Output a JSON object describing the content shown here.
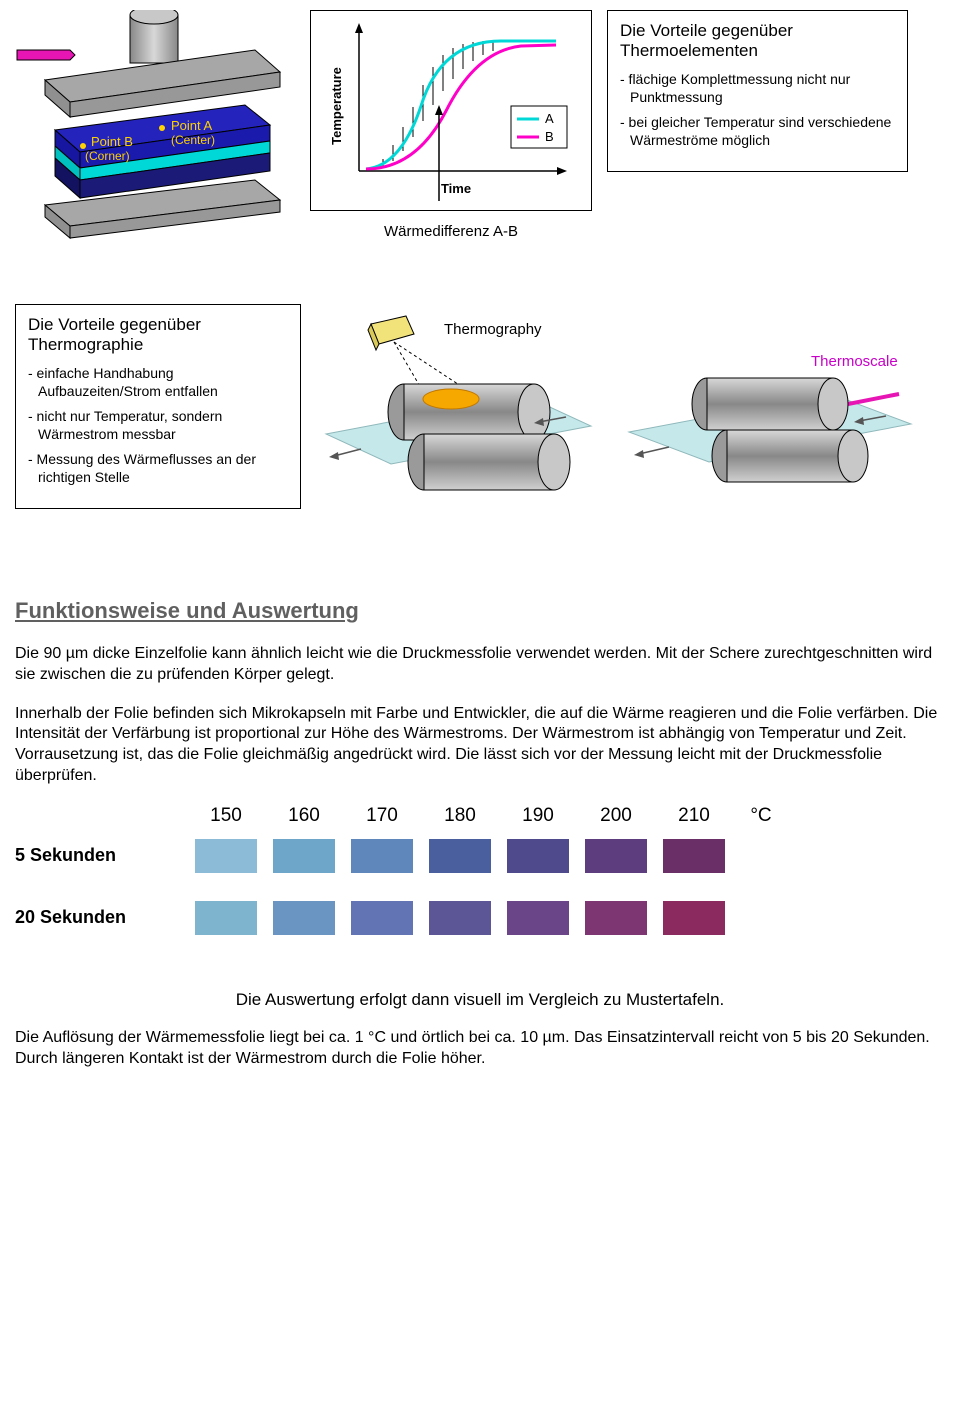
{
  "topRow": {
    "press": {
      "labelA": "Point A",
      "labelACenter": "(Center)",
      "labelB": "Point B",
      "labelBCorner": "(Corner)",
      "colors": {
        "plateGrey": "#a7a7a7",
        "cylGrey": "#b0b0b0",
        "magenta": "#e815b5",
        "blueTop": "#2424bd",
        "cyan": "#00e0e0",
        "blueBot": "#1b1b77",
        "label": "#ffd200"
      }
    },
    "graph": {
      "ylabel": "Temperature",
      "xlabel": "Time",
      "caption": "Wärmedifferenz A-B",
      "legendA": "A",
      "legendB": "B",
      "colors": {
        "axis": "#000000",
        "a": "#00d8d8",
        "b": "#ff00c8",
        "hatch": "#000000"
      }
    },
    "boxThermo": {
      "title": "Die Vorteile gegenüber Thermoelementen",
      "items": [
        "- flächige Komplettmessung nicht nur Punktmessung",
        "- bei gleicher Temperatur sind verschiedene Wärmeströme möglich"
      ]
    }
  },
  "midRow": {
    "boxThermog": {
      "title": "Die Vorteile gegenüber Thermographie",
      "items": [
        "- einfache Handhabung Aufbauzeiten/Strom entfallen",
        "- nicht nur Temperatur, sondern Wärmestrom messbar",
        "- Messung des Wärmeflusses an der richtigen Stelle"
      ]
    },
    "thermography": {
      "label": "Thermography",
      "colors": {
        "camera": "#f2e27a",
        "spot": "#f7a800",
        "roll": "#b0b0b0",
        "sheet": "#c5e8ea"
      }
    },
    "thermoscale": {
      "label": "Thermoscale",
      "labelColor": "#c800c8",
      "colors": {
        "roll": "#b0b0b0",
        "sheet": "#c5e8ea",
        "patch1": "#7a4fd9",
        "patch2": "#a84fd9",
        "magentaLine": "#e815b5"
      }
    }
  },
  "heading": "Funktionsweise und Auswertung",
  "para1": "Die 90 µm dicke Einzelfolie kann ähnlich leicht wie die Druckmessfolie verwendet werden. Mit der Schere zurechtgeschnitten wird sie zwischen die zu prüfenden Körper gelegt.",
  "para2": "Innerhalb der Folie befinden sich Mikrokapseln mit Farbe und Entwickler, die auf die Wärme reagieren und die Folie verfärben. Die Intensität der Verfärbung ist proportional zur Höhe des Wärmestroms. Der Wärmestrom ist abhängig von Temperatur und Zeit. Vorrausetzung ist, das die Folie gleichmäßig angedrückt wird. Die lässt sich vor der Messung leicht mit der Druckmessfolie überprüfen.",
  "scale": {
    "unit": "°C",
    "temps": [
      "150",
      "160",
      "170",
      "180",
      "190",
      "200",
      "210"
    ],
    "rows": [
      {
        "label": "5 Sekunden",
        "colors": [
          "#8bbbd6",
          "#6ea6c9",
          "#5f87bb",
          "#4a5f9e",
          "#4f4a8c",
          "#5e3d7e",
          "#6b2f68"
        ]
      },
      {
        "label": "20 Sekunden",
        "colors": [
          "#7fb4cf",
          "#6a94c2",
          "#6274b3",
          "#5c5596",
          "#6a4688",
          "#7d3672",
          "#8a2a5e"
        ]
      }
    ]
  },
  "evalText": "Die Auswertung erfolgt dann visuell im Vergleich zu Mustertafeln.",
  "para3": "Die Auflösung der Wärmemessfolie liegt bei ca. 1 °C und örtlich bei ca. 10 µm. Das Einsatzintervall reicht von 5 bis 20 Sekunden. Durch längeren Kontakt ist der Wärmestrom durch die Folie höher."
}
